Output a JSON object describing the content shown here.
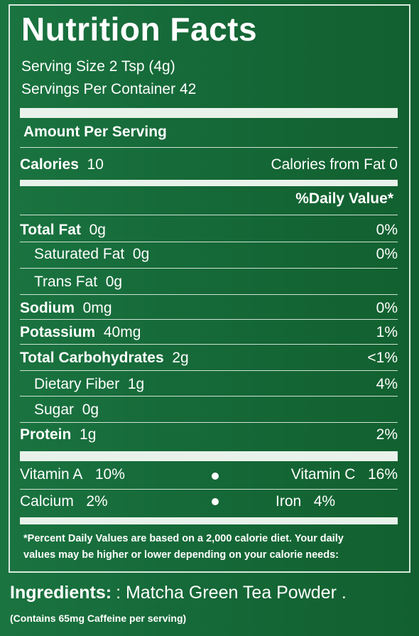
{
  "label": {
    "title": "Nutrition Facts",
    "serving_size": "Serving Size 2 Tsp (4g)",
    "servings_per_container": "Servings Per Container 42",
    "amount_per_serving": "Amount Per Serving",
    "calories_label": "Calories",
    "calories_value": "10",
    "calories_from_fat": "Calories from Fat  0",
    "daily_value_header": "%Daily Value*",
    "nutrients": [
      {
        "name": "Total Fat",
        "amount": "0g",
        "dv": "0%",
        "bold": true
      },
      {
        "name": "Saturated Fat",
        "amount": "0g",
        "dv": "0%",
        "bold": false
      },
      {
        "name": "Trans Fat",
        "amount": "0g",
        "dv": "",
        "bold": false
      },
      {
        "name": "Sodium",
        "amount": "0mg",
        "dv": "0%",
        "bold": true
      },
      {
        "name": "Potassium",
        "amount": "40mg",
        "dv": "1%",
        "bold": true
      },
      {
        "name": "Total Carbohydrates",
        "amount": "2g",
        "dv": "<1%",
        "bold": true
      },
      {
        "name": "Dietary Fiber",
        "amount": "1g",
        "dv": "4%",
        "bold": false
      },
      {
        "name": "Sugar",
        "amount": "0g",
        "dv": "",
        "bold": false
      },
      {
        "name": "Protein",
        "amount": "1g",
        "dv": "2%",
        "bold": true
      }
    ],
    "vitamins": [
      {
        "left_name": "Vitamin A",
        "left_value": "10%",
        "right_name": "Vitamin C",
        "right_value": "16%"
      },
      {
        "left_name": "Calcium",
        "left_value": "2%",
        "right_name": "Iron",
        "right_value": "4%"
      }
    ],
    "footnote_line1": "*Percent Daily Values are based on a 2,000 calorie diet. Your daily",
    "footnote_line2": "values may be higher or lower depending on your calorie needs:"
  },
  "ingredients": {
    "label": "Ingredients:",
    "value": ": Matcha Green Tea Powder .",
    "caffeine_note": "(Contains 65mg Caffeine per serving)"
  },
  "colors": {
    "background": "#176a3a",
    "text": "#ffffff",
    "rule": "#e8f2ea"
  }
}
